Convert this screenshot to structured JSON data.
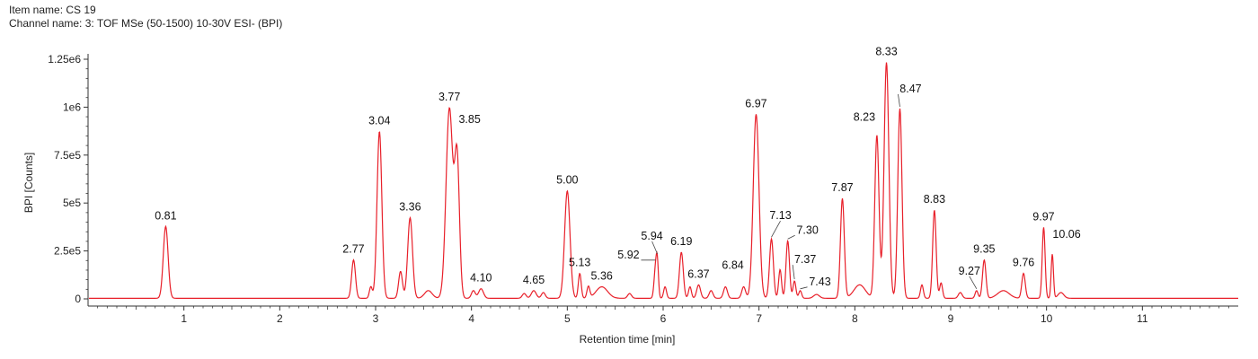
{
  "header": {
    "item_prefix": "Item name: ",
    "item_name": "CS 19",
    "channel_prefix": "Channel name: ",
    "channel_name": "3: TOF MSe (50-1500) 10-30V ESI- (BPI)"
  },
  "colors": {
    "trace": "#e8202a",
    "axis": "#333333"
  },
  "chart_data": {
    "type": "line",
    "title": "",
    "xlabel": "Retention time [min]",
    "ylabel": "BPI [Counts]",
    "xlim": [
      0,
      12
    ],
    "ylim": [
      0,
      1250000
    ],
    "x_ticks": [
      1,
      2,
      3,
      4,
      5,
      6,
      7,
      8,
      9,
      10,
      11
    ],
    "x_tick_labels": [
      "1",
      "2",
      "3",
      "4",
      "5",
      "6",
      "7",
      "8",
      "9",
      "10",
      "11"
    ],
    "y_ticks": [
      0,
      250000,
      500000,
      750000,
      1000000,
      1250000
    ],
    "y_tick_labels": [
      "0",
      "2.5e5",
      "5e5",
      "7.5e5",
      "1e6",
      "1.25e6"
    ],
    "grid": false,
    "legend": "none",
    "series": [
      {
        "peaks": [
          {
            "rt": 0.81,
            "height": 375000,
            "width": 0.025,
            "label": "0.81"
          },
          {
            "rt": 2.77,
            "height": 200000,
            "width": 0.02,
            "label": "2.77"
          },
          {
            "rt": 2.95,
            "height": 60000,
            "width": 0.015,
            "label": ""
          },
          {
            "rt": 3.04,
            "height": 870000,
            "width": 0.025,
            "label": "3.04"
          },
          {
            "rt": 3.26,
            "height": 140000,
            "width": 0.02,
            "label": ""
          },
          {
            "rt": 3.36,
            "height": 420000,
            "width": 0.025,
            "label": "3.36"
          },
          {
            "rt": 3.55,
            "height": 40000,
            "width": 0.04,
            "label": ""
          },
          {
            "rt": 3.77,
            "height": 990000,
            "width": 0.035,
            "label": "3.77"
          },
          {
            "rt": 3.85,
            "height": 720000,
            "width": 0.025,
            "label": "3.85"
          },
          {
            "rt": 4.02,
            "height": 40000,
            "width": 0.02,
            "label": ""
          },
          {
            "rt": 4.1,
            "height": 50000,
            "width": 0.025,
            "label": "4.10"
          },
          {
            "rt": 4.55,
            "height": 25000,
            "width": 0.02,
            "label": ""
          },
          {
            "rt": 4.65,
            "height": 40000,
            "width": 0.025,
            "label": "4.65"
          },
          {
            "rt": 4.75,
            "height": 30000,
            "width": 0.02,
            "label": ""
          },
          {
            "rt": 5.0,
            "height": 560000,
            "width": 0.028,
            "label": "5.00"
          },
          {
            "rt": 5.13,
            "height": 130000,
            "width": 0.015,
            "label": "5.13"
          },
          {
            "rt": 5.22,
            "height": 60000,
            "width": 0.015,
            "label": ""
          },
          {
            "rt": 5.36,
            "height": 60000,
            "width": 0.06,
            "label": "5.36"
          },
          {
            "rt": 5.65,
            "height": 25000,
            "width": 0.02,
            "label": ""
          },
          {
            "rt": 5.92,
            "height": 150000,
            "width": 0.015,
            "label": "5.92"
          },
          {
            "rt": 5.94,
            "height": 160000,
            "width": 0.012,
            "label": "5.94"
          },
          {
            "rt": 6.02,
            "height": 60000,
            "width": 0.015,
            "label": ""
          },
          {
            "rt": 6.19,
            "height": 240000,
            "width": 0.02,
            "label": "6.19"
          },
          {
            "rt": 6.28,
            "height": 60000,
            "width": 0.015,
            "label": ""
          },
          {
            "rt": 6.37,
            "height": 70000,
            "width": 0.02,
            "label": "6.37"
          },
          {
            "rt": 6.5,
            "height": 40000,
            "width": 0.02,
            "label": ""
          },
          {
            "rt": 6.65,
            "height": 60000,
            "width": 0.02,
            "label": ""
          },
          {
            "rt": 6.84,
            "height": 60000,
            "width": 0.02,
            "label": "6.84"
          },
          {
            "rt": 6.97,
            "height": 960000,
            "width": 0.03,
            "label": "6.97"
          },
          {
            "rt": 7.13,
            "height": 310000,
            "width": 0.02,
            "label": "7.13"
          },
          {
            "rt": 7.22,
            "height": 150000,
            "width": 0.015,
            "label": ""
          },
          {
            "rt": 7.3,
            "height": 300000,
            "width": 0.018,
            "label": "7.30"
          },
          {
            "rt": 7.37,
            "height": 90000,
            "width": 0.015,
            "label": "7.37"
          },
          {
            "rt": 7.43,
            "height": 40000,
            "width": 0.015,
            "label": "7.43"
          },
          {
            "rt": 7.6,
            "height": 20000,
            "width": 0.03,
            "label": ""
          },
          {
            "rt": 7.87,
            "height": 520000,
            "width": 0.02,
            "label": "7.87"
          },
          {
            "rt": 8.05,
            "height": 70000,
            "width": 0.06,
            "label": ""
          },
          {
            "rt": 8.23,
            "height": 850000,
            "width": 0.022,
            "label": "8.23"
          },
          {
            "rt": 8.33,
            "height": 1230000,
            "width": 0.025,
            "label": "8.33"
          },
          {
            "rt": 8.47,
            "height": 990000,
            "width": 0.022,
            "label": "8.47"
          },
          {
            "rt": 8.7,
            "height": 70000,
            "width": 0.015,
            "label": ""
          },
          {
            "rt": 8.83,
            "height": 460000,
            "width": 0.018,
            "label": "8.83"
          },
          {
            "rt": 8.9,
            "height": 80000,
            "width": 0.015,
            "label": ""
          },
          {
            "rt": 9.1,
            "height": 30000,
            "width": 0.02,
            "label": ""
          },
          {
            "rt": 9.27,
            "height": 40000,
            "width": 0.015,
            "label": "9.27"
          },
          {
            "rt": 9.35,
            "height": 200000,
            "width": 0.018,
            "label": "9.35"
          },
          {
            "rt": 9.55,
            "height": 40000,
            "width": 0.06,
            "label": ""
          },
          {
            "rt": 9.76,
            "height": 130000,
            "width": 0.018,
            "label": "9.76"
          },
          {
            "rt": 9.97,
            "height": 370000,
            "width": 0.015,
            "label": "9.97"
          },
          {
            "rt": 10.06,
            "height": 230000,
            "width": 0.012,
            "label": "10.06"
          },
          {
            "rt": 10.15,
            "height": 30000,
            "width": 0.03,
            "label": ""
          }
        ]
      }
    ]
  }
}
